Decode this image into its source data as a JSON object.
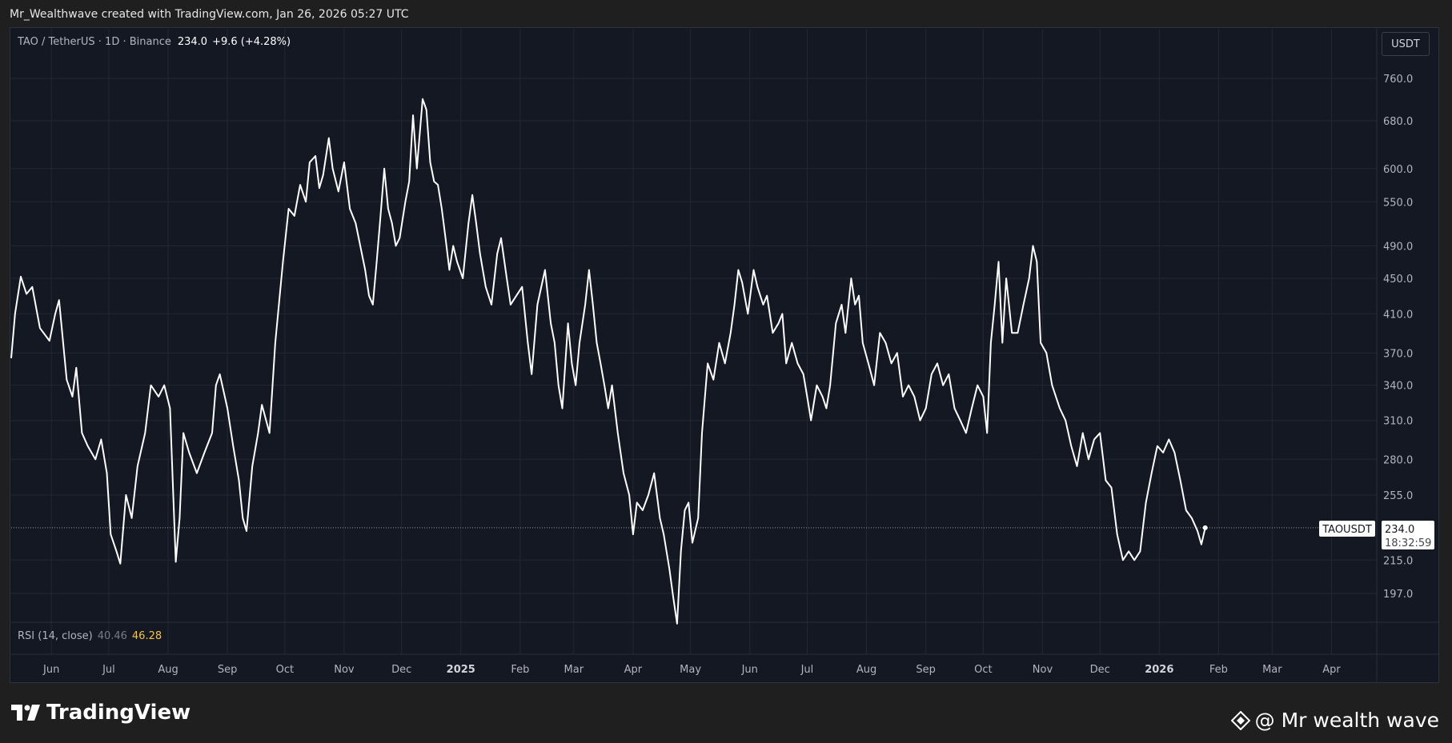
{
  "header": {
    "credit": "Mr_Wealthwave created with TradingView.com, Jan 26, 2026 05:27 UTC"
  },
  "legend": {
    "symbol": "TAO / TetherUS · 1D · Binance",
    "last": "234.0",
    "change": "+9.6 (+4.28%)"
  },
  "currency_button": "USDT",
  "rsi_legend": {
    "label": "RSI (14, close)",
    "value1": "40.46",
    "value2": "46.28"
  },
  "price_tag": {
    "symbol": "TAOUSDT",
    "price": "234.0",
    "countdown": "18:32:59"
  },
  "footer": {
    "brand": "TradingView",
    "watermark": "@ Mr wealth wave"
  },
  "colors": {
    "background": "#141823",
    "line": "#ffffff",
    "grid": "#232733",
    "rsi_value": "#f5c542"
  },
  "icons": [
    "tradingview-logo-icon",
    "diamond-logo-icon"
  ],
  "chart_data": {
    "type": "line",
    "title": "TAO / TetherUS · 1D · Binance",
    "y_scale": "log",
    "grid": true,
    "y_ticks": [
      760.0,
      680.0,
      600.0,
      550.0,
      490.0,
      450.0,
      410.0,
      370.0,
      340.0,
      310.0,
      280.0,
      255.0,
      234.0,
      215.0,
      197.0
    ],
    "y_tick_labels": [
      "760.0",
      "680.0",
      "600.0",
      "550.0",
      "490.0",
      "450.0",
      "410.0",
      "370.0",
      "340.0",
      "310.0",
      "280.0",
      "255.0",
      "215.0",
      "197.0"
    ],
    "x_ticks": [
      {
        "label": "Jun",
        "date": "2024-06-01",
        "bold": false
      },
      {
        "label": "Jul",
        "date": "2024-07-01",
        "bold": false
      },
      {
        "label": "Aug",
        "date": "2024-08-01",
        "bold": false
      },
      {
        "label": "Sep",
        "date": "2024-09-01",
        "bold": false
      },
      {
        "label": "Oct",
        "date": "2024-10-01",
        "bold": false
      },
      {
        "label": "Nov",
        "date": "2024-11-01",
        "bold": false
      },
      {
        "label": "Dec",
        "date": "2024-12-01",
        "bold": false
      },
      {
        "label": "2025",
        "date": "2025-01-01",
        "bold": true
      },
      {
        "label": "Feb",
        "date": "2025-02-01",
        "bold": false
      },
      {
        "label": "Mar",
        "date": "2025-03-01",
        "bold": false
      },
      {
        "label": "Apr",
        "date": "2025-04-01",
        "bold": false
      },
      {
        "label": "May",
        "date": "2025-05-01",
        "bold": false
      },
      {
        "label": "Jun",
        "date": "2025-06-01",
        "bold": false
      },
      {
        "label": "Jul",
        "date": "2025-07-01",
        "bold": false
      },
      {
        "label": "Aug",
        "date": "2025-08-01",
        "bold": false
      },
      {
        "label": "Sep",
        "date": "2025-09-01",
        "bold": false
      },
      {
        "label": "Oct",
        "date": "2025-10-01",
        "bold": false
      },
      {
        "label": "Nov",
        "date": "2025-11-01",
        "bold": false
      },
      {
        "label": "Dec",
        "date": "2025-12-01",
        "bold": false
      },
      {
        "label": "2026",
        "date": "2026-01-01",
        "bold": true
      },
      {
        "label": "Feb",
        "date": "2026-02-01",
        "bold": false
      },
      {
        "label": "Mar",
        "date": "2026-03-01",
        "bold": false
      },
      {
        "label": "Apr",
        "date": "2026-04-01",
        "bold": false
      }
    ],
    "last_price": 234.0,
    "series": [
      {
        "points": [
          [
            "2024-05-11",
            365
          ],
          [
            "2024-05-13",
            410
          ],
          [
            "2024-05-16",
            452
          ],
          [
            "2024-05-19",
            432
          ],
          [
            "2024-05-22",
            440
          ],
          [
            "2024-05-26",
            395
          ],
          [
            "2024-05-31",
            382
          ],
          [
            "2024-06-03",
            410
          ],
          [
            "2024-06-05",
            425
          ],
          [
            "2024-06-09",
            345
          ],
          [
            "2024-06-12",
            330
          ],
          [
            "2024-06-14",
            356
          ],
          [
            "2024-06-17",
            300
          ],
          [
            "2024-06-20",
            290
          ],
          [
            "2024-06-24",
            280
          ],
          [
            "2024-06-27",
            295
          ],
          [
            "2024-06-30",
            270
          ],
          [
            "2024-07-02",
            230
          ],
          [
            "2024-07-05",
            220
          ],
          [
            "2024-07-07",
            213
          ],
          [
            "2024-07-10",
            255
          ],
          [
            "2024-07-13",
            240
          ],
          [
            "2024-07-16",
            275
          ],
          [
            "2024-07-20",
            300
          ],
          [
            "2024-07-23",
            340
          ],
          [
            "2024-07-27",
            330
          ],
          [
            "2024-07-30",
            340
          ],
          [
            "2024-08-02",
            320
          ],
          [
            "2024-08-05",
            214
          ],
          [
            "2024-08-07",
            240
          ],
          [
            "2024-08-09",
            300
          ],
          [
            "2024-08-12",
            285
          ],
          [
            "2024-08-16",
            270
          ],
          [
            "2024-08-20",
            285
          ],
          [
            "2024-08-24",
            300
          ],
          [
            "2024-08-26",
            340
          ],
          [
            "2024-08-28",
            350
          ],
          [
            "2024-09-01",
            320
          ],
          [
            "2024-09-04",
            290
          ],
          [
            "2024-09-07",
            265
          ],
          [
            "2024-09-09",
            240
          ],
          [
            "2024-09-11",
            232
          ],
          [
            "2024-09-14",
            275
          ],
          [
            "2024-09-17",
            300
          ],
          [
            "2024-09-19",
            323
          ],
          [
            "2024-09-23",
            300
          ],
          [
            "2024-09-26",
            380
          ],
          [
            "2024-09-30",
            470
          ],
          [
            "2024-10-03",
            540
          ],
          [
            "2024-10-06",
            530
          ],
          [
            "2024-10-09",
            575
          ],
          [
            "2024-10-12",
            550
          ],
          [
            "2024-10-14",
            610
          ],
          [
            "2024-10-17",
            620
          ],
          [
            "2024-10-19",
            570
          ],
          [
            "2024-10-21",
            590
          ],
          [
            "2024-10-24",
            650
          ],
          [
            "2024-10-26",
            600
          ],
          [
            "2024-10-29",
            565
          ],
          [
            "2024-11-01",
            610
          ],
          [
            "2024-11-04",
            540
          ],
          [
            "2024-11-07",
            520
          ],
          [
            "2024-11-09",
            495
          ],
          [
            "2024-11-12",
            460
          ],
          [
            "2024-11-14",
            430
          ],
          [
            "2024-11-16",
            420
          ],
          [
            "2024-11-18",
            470
          ],
          [
            "2024-11-20",
            530
          ],
          [
            "2024-11-22",
            600
          ],
          [
            "2024-11-24",
            540
          ],
          [
            "2024-11-26",
            520
          ],
          [
            "2024-11-28",
            490
          ],
          [
            "2024-11-30",
            500
          ],
          [
            "2024-12-03",
            550
          ],
          [
            "2024-12-05",
            580
          ],
          [
            "2024-12-07",
            690
          ],
          [
            "2024-12-09",
            600
          ],
          [
            "2024-12-12",
            720
          ],
          [
            "2024-12-14",
            700
          ],
          [
            "2024-12-16",
            610
          ],
          [
            "2024-12-18",
            580
          ],
          [
            "2024-12-20",
            575
          ],
          [
            "2024-12-22",
            540
          ],
          [
            "2024-12-24",
            500
          ],
          [
            "2024-12-26",
            460
          ],
          [
            "2024-12-28",
            490
          ],
          [
            "2024-12-30",
            470
          ],
          [
            "2025-01-02",
            450
          ],
          [
            "2025-01-05",
            520
          ],
          [
            "2025-01-07",
            560
          ],
          [
            "2025-01-09",
            520
          ],
          [
            "2025-01-11",
            480
          ],
          [
            "2025-01-14",
            440
          ],
          [
            "2025-01-17",
            420
          ],
          [
            "2025-01-20",
            480
          ],
          [
            "2025-01-22",
            500
          ],
          [
            "2025-01-25",
            450
          ],
          [
            "2025-01-27",
            420
          ],
          [
            "2025-01-30",
            430
          ],
          [
            "2025-02-02",
            440
          ],
          [
            "2025-02-05",
            380
          ],
          [
            "2025-02-07",
            350
          ],
          [
            "2025-02-10",
            420
          ],
          [
            "2025-02-14",
            460
          ],
          [
            "2025-02-17",
            400
          ],
          [
            "2025-02-19",
            380
          ],
          [
            "2025-02-21",
            340
          ],
          [
            "2025-02-23",
            320
          ],
          [
            "2025-02-26",
            400
          ],
          [
            "2025-02-28",
            360
          ],
          [
            "2025-03-02",
            340
          ],
          [
            "2025-03-04",
            380
          ],
          [
            "2025-03-07",
            420
          ],
          [
            "2025-03-09",
            460
          ],
          [
            "2025-03-11",
            420
          ],
          [
            "2025-03-13",
            380
          ],
          [
            "2025-03-15",
            360
          ],
          [
            "2025-03-17",
            340
          ],
          [
            "2025-03-19",
            320
          ],
          [
            "2025-03-21",
            340
          ],
          [
            "2025-03-24",
            300
          ],
          [
            "2025-03-27",
            270
          ],
          [
            "2025-03-30",
            255
          ],
          [
            "2025-04-01",
            230
          ],
          [
            "2025-04-03",
            250
          ],
          [
            "2025-04-06",
            245
          ],
          [
            "2025-04-09",
            255
          ],
          [
            "2025-04-12",
            270
          ],
          [
            "2025-04-15",
            240
          ],
          [
            "2025-04-17",
            230
          ],
          [
            "2025-04-20",
            210
          ],
          [
            "2025-04-22",
            195
          ],
          [
            "2025-04-24",
            182
          ],
          [
            "2025-04-26",
            220
          ],
          [
            "2025-04-28",
            245
          ],
          [
            "2025-04-30",
            250
          ],
          [
            "2025-05-02",
            225
          ],
          [
            "2025-05-05",
            240
          ],
          [
            "2025-05-07",
            300
          ],
          [
            "2025-05-10",
            360
          ],
          [
            "2025-05-13",
            345
          ],
          [
            "2025-05-16",
            380
          ],
          [
            "2025-05-19",
            360
          ],
          [
            "2025-05-22",
            390
          ],
          [
            "2025-05-24",
            420
          ],
          [
            "2025-05-26",
            460
          ],
          [
            "2025-05-28",
            445
          ],
          [
            "2025-05-31",
            410
          ],
          [
            "2025-06-03",
            460
          ],
          [
            "2025-06-05",
            440
          ],
          [
            "2025-06-08",
            420
          ],
          [
            "2025-06-10",
            430
          ],
          [
            "2025-06-13",
            390
          ],
          [
            "2025-06-16",
            400
          ],
          [
            "2025-06-18",
            410
          ],
          [
            "2025-06-20",
            360
          ],
          [
            "2025-06-23",
            380
          ],
          [
            "2025-06-26",
            360
          ],
          [
            "2025-06-29",
            350
          ],
          [
            "2025-07-01",
            330
          ],
          [
            "2025-07-03",
            310
          ],
          [
            "2025-07-06",
            340
          ],
          [
            "2025-07-09",
            330
          ],
          [
            "2025-07-11",
            320
          ],
          [
            "2025-07-13",
            340
          ],
          [
            "2025-07-16",
            400
          ],
          [
            "2025-07-19",
            420
          ],
          [
            "2025-07-21",
            390
          ],
          [
            "2025-07-24",
            450
          ],
          [
            "2025-07-26",
            420
          ],
          [
            "2025-07-28",
            430
          ],
          [
            "2025-07-30",
            380
          ],
          [
            "2025-08-02",
            360
          ],
          [
            "2025-08-05",
            340
          ],
          [
            "2025-08-08",
            390
          ],
          [
            "2025-08-11",
            380
          ],
          [
            "2025-08-14",
            360
          ],
          [
            "2025-08-17",
            370
          ],
          [
            "2025-08-20",
            330
          ],
          [
            "2025-08-23",
            340
          ],
          [
            "2025-08-26",
            330
          ],
          [
            "2025-08-29",
            310
          ],
          [
            "2025-09-01",
            320
          ],
          [
            "2025-09-04",
            350
          ],
          [
            "2025-09-07",
            360
          ],
          [
            "2025-09-10",
            340
          ],
          [
            "2025-09-13",
            350
          ],
          [
            "2025-09-16",
            320
          ],
          [
            "2025-09-19",
            310
          ],
          [
            "2025-09-22",
            300
          ],
          [
            "2025-09-25",
            320
          ],
          [
            "2025-09-28",
            340
          ],
          [
            "2025-10-01",
            330
          ],
          [
            "2025-10-03",
            300
          ],
          [
            "2025-10-05",
            380
          ],
          [
            "2025-10-07",
            420
          ],
          [
            "2025-10-09",
            470
          ],
          [
            "2025-10-11",
            380
          ],
          [
            "2025-10-13",
            450
          ],
          [
            "2025-10-16",
            390
          ],
          [
            "2025-10-19",
            390
          ],
          [
            "2025-10-22",
            420
          ],
          [
            "2025-10-25",
            450
          ],
          [
            "2025-10-27",
            490
          ],
          [
            "2025-10-29",
            470
          ],
          [
            "2025-10-31",
            380
          ],
          [
            "2025-11-03",
            370
          ],
          [
            "2025-11-06",
            340
          ],
          [
            "2025-11-10",
            320
          ],
          [
            "2025-11-13",
            310
          ],
          [
            "2025-11-16",
            290
          ],
          [
            "2025-11-19",
            275
          ],
          [
            "2025-11-22",
            300
          ],
          [
            "2025-11-25",
            280
          ],
          [
            "2025-11-28",
            295
          ],
          [
            "2025-12-01",
            300
          ],
          [
            "2025-12-04",
            265
          ],
          [
            "2025-12-07",
            260
          ],
          [
            "2025-12-10",
            230
          ],
          [
            "2025-12-13",
            215
          ],
          [
            "2025-12-16",
            220
          ],
          [
            "2025-12-19",
            215
          ],
          [
            "2025-12-22",
            220
          ],
          [
            "2025-12-25",
            250
          ],
          [
            "2025-12-28",
            270
          ],
          [
            "2025-12-31",
            290
          ],
          [
            "2026-01-03",
            285
          ],
          [
            "2026-01-06",
            295
          ],
          [
            "2026-01-09",
            285
          ],
          [
            "2026-01-12",
            265
          ],
          [
            "2026-01-15",
            245
          ],
          [
            "2026-01-18",
            240
          ],
          [
            "2026-01-21",
            232
          ],
          [
            "2026-01-23",
            224
          ],
          [
            "2026-01-25",
            234
          ]
        ]
      }
    ]
  }
}
